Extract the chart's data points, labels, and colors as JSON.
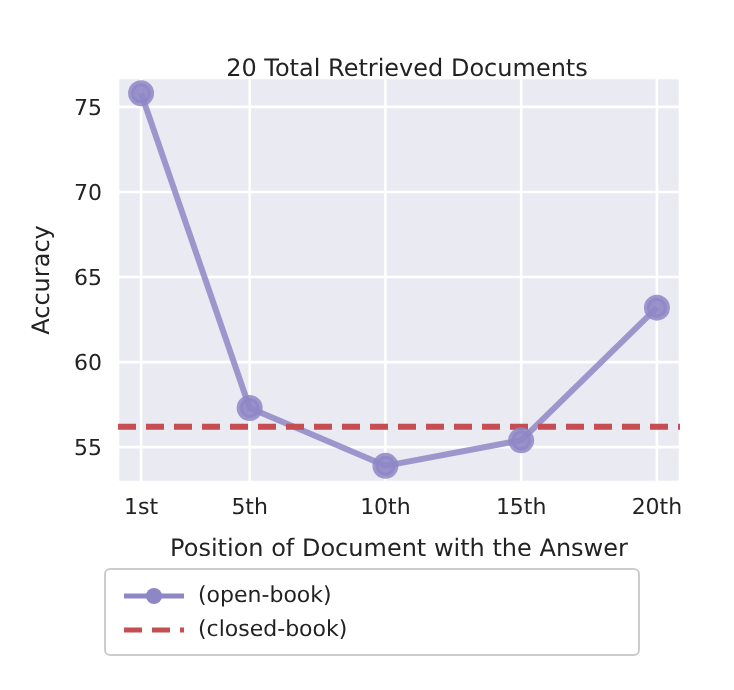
{
  "chart_data": {
    "type": "line",
    "title": "20 Total Retrieved Documents",
    "xlabel": "Position of Document with the Answer",
    "ylabel": "Accuracy",
    "xlim": [
      0.15,
      20.85
    ],
    "xticks": [
      {
        "value": 1,
        "label": "1st"
      },
      {
        "value": 5,
        "label": "5th"
      },
      {
        "value": 10,
        "label": "10th"
      },
      {
        "value": 15,
        "label": "15th"
      },
      {
        "value": 20,
        "label": "20th"
      }
    ],
    "ylim": [
      52.95,
      76.7
    ],
    "yticks": [
      55,
      60,
      65,
      70,
      75
    ],
    "grid": true,
    "legend": "bottom",
    "series": [
      {
        "name": "(open-book)",
        "color": "#8e87c6",
        "x": [
          1,
          5,
          10,
          15,
          20
        ],
        "values": [
          75.8,
          57.3,
          53.9,
          55.4,
          63.2
        ],
        "marker": "circle",
        "line_style": "solid"
      },
      {
        "name": "(closed-book)",
        "color": "#c44e52",
        "x": [
          0.15,
          20.85
        ],
        "values": [
          56.2,
          56.2
        ],
        "marker": "none",
        "line_style": "dashed"
      }
    ]
  }
}
